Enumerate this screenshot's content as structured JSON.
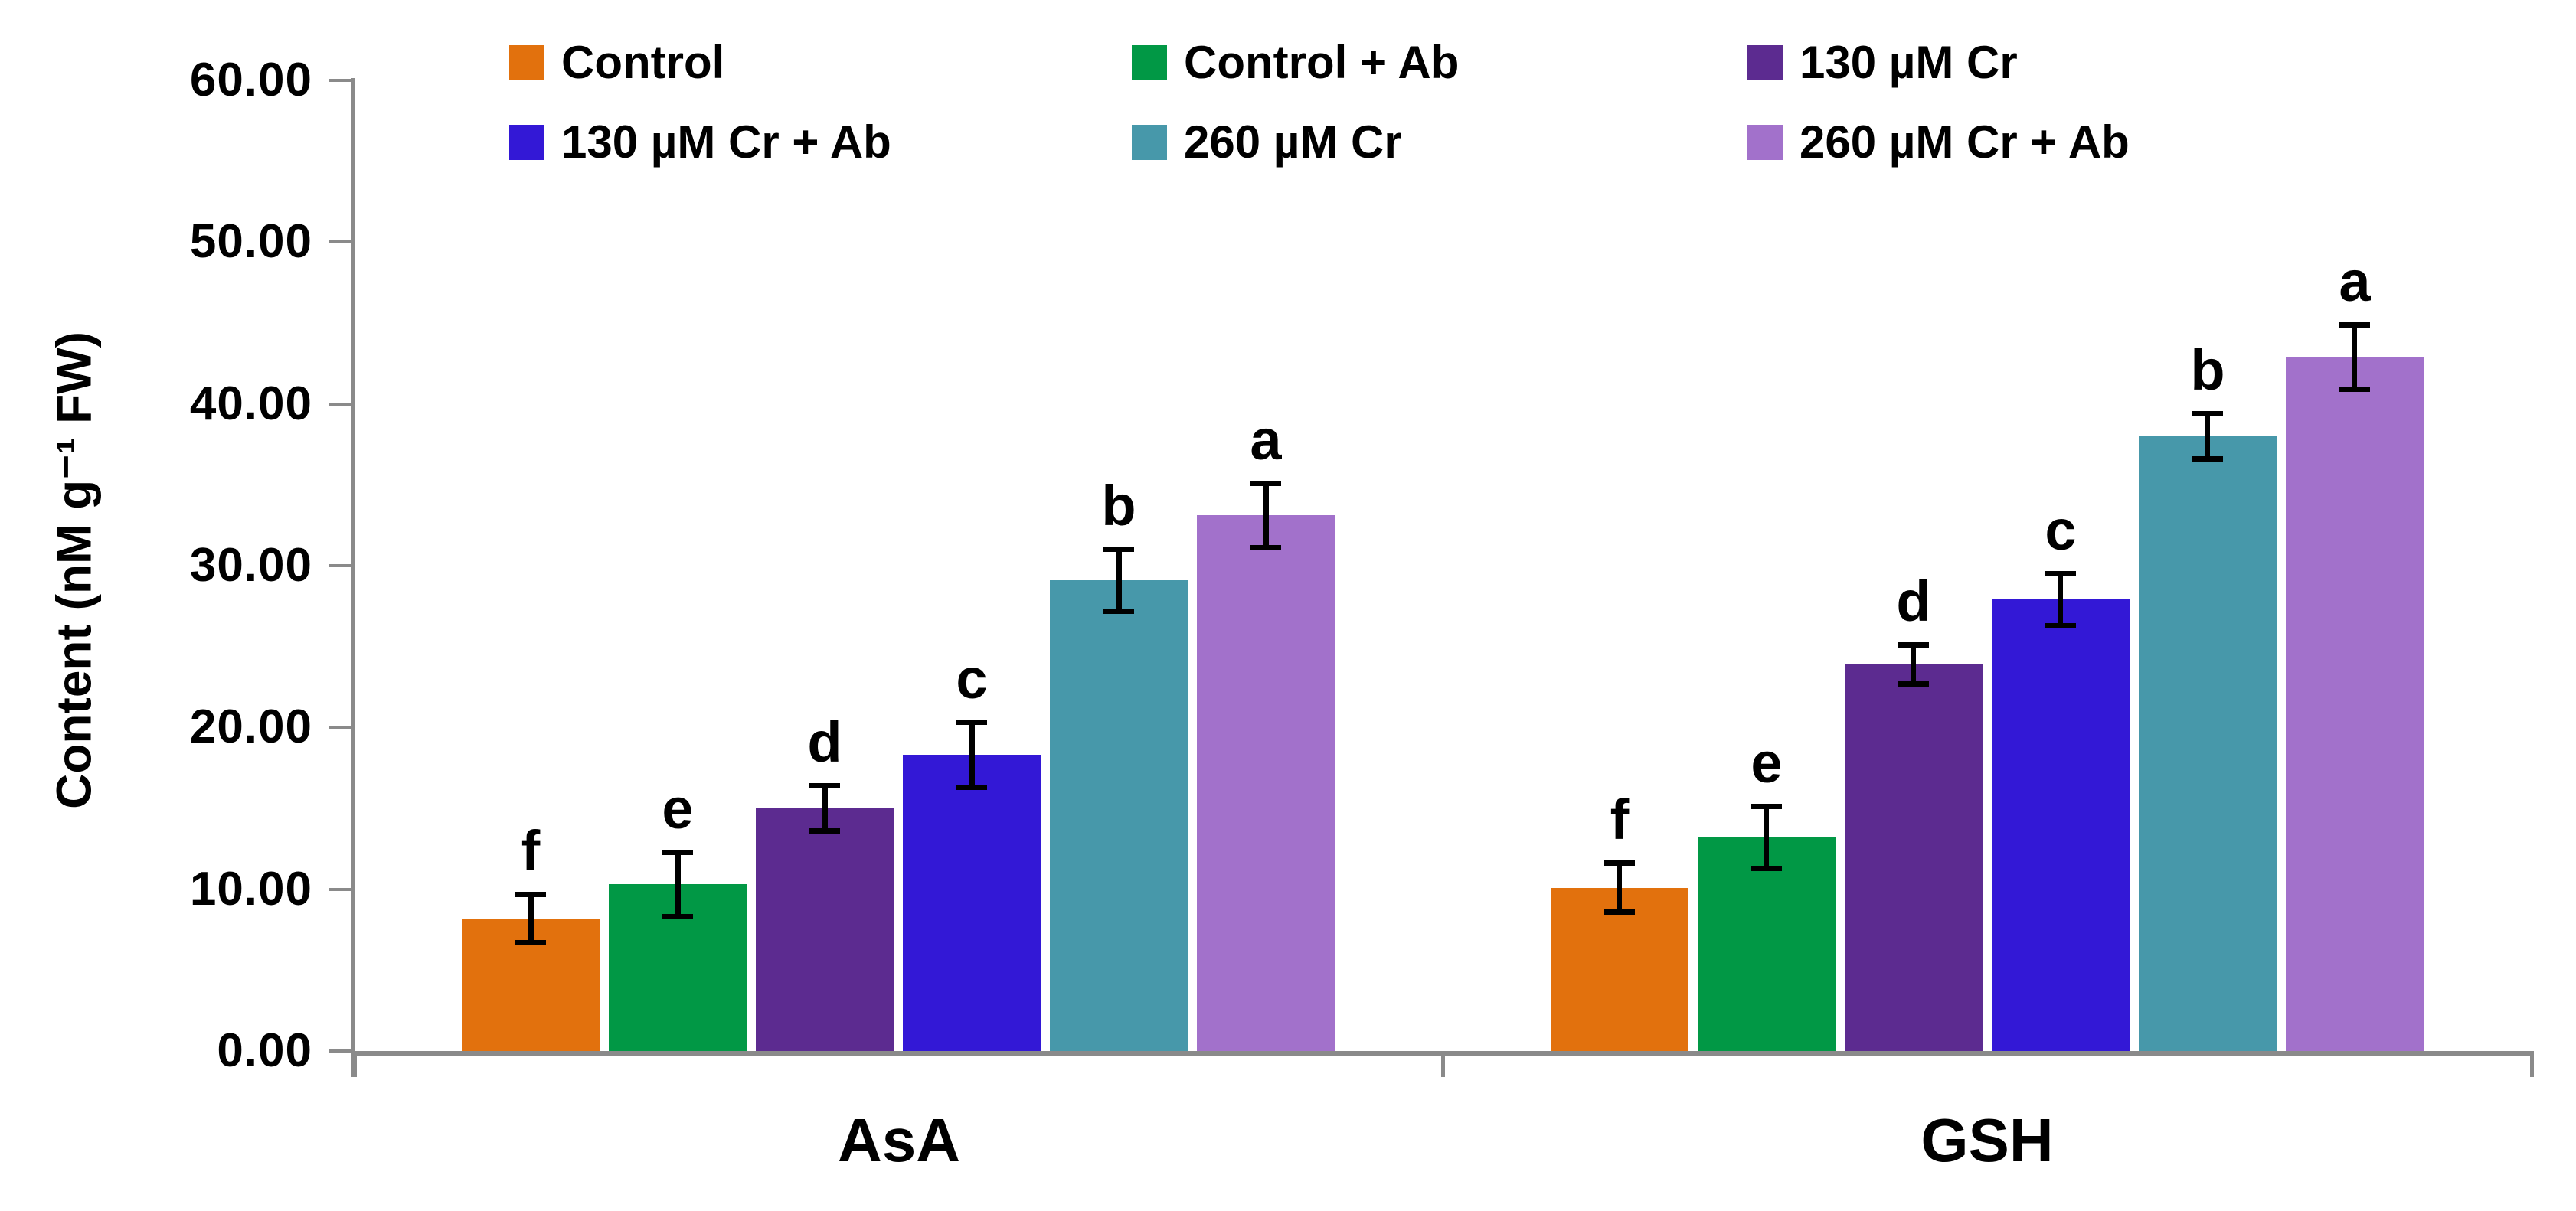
{
  "chart_data": {
    "type": "bar",
    "title": "",
    "xlabel": "",
    "ylabel": "Content (nM g⁻¹ FW)",
    "ylim": [
      0,
      60
    ],
    "ytick_step": 10,
    "ytick_decimals": 2,
    "ytick_labels": [
      "0.00",
      "10.00",
      "20.00",
      "30.00",
      "40.00",
      "50.00",
      "60.00"
    ],
    "grid": false,
    "error_bars": true,
    "legend_position": "top",
    "legend_rows": 2,
    "legend_columns": 3,
    "axis_color": "#8a8a8a",
    "text_color": "#000000",
    "categories": [
      "AsA",
      "GSH"
    ],
    "series": [
      {
        "name": "Control",
        "color": "#e2710d",
        "values": [
          8.2,
          10.1
        ],
        "errors": [
          1.5,
          1.5
        ],
        "letters": [
          "f",
          "f"
        ]
      },
      {
        "name": "Control + Ab",
        "color": "#019845",
        "values": [
          10.3,
          13.2
        ],
        "errors": [
          2.0,
          1.9
        ],
        "letters": [
          "e",
          "e"
        ]
      },
      {
        "name": "130 µM Cr",
        "color": "#5c2b90",
        "values": [
          15.0,
          23.9
        ],
        "errors": [
          1.4,
          1.2
        ],
        "letters": [
          "d",
          "d"
        ]
      },
      {
        "name": "130 µM Cr + Ab",
        "color": "#3318d6",
        "values": [
          18.3,
          27.9
        ],
        "errors": [
          2.0,
          1.6
        ],
        "letters": [
          "c",
          "c"
        ]
      },
      {
        "name": "260 µM Cr",
        "color": "#4798aa",
        "values": [
          29.1,
          38.0
        ],
        "errors": [
          1.9,
          1.4
        ],
        "letters": [
          "b",
          "b"
        ]
      },
      {
        "name": "260 µM Cr + Ab",
        "color": "#a271cb",
        "values": [
          33.1,
          42.9
        ],
        "errors": [
          2.0,
          2.0
        ],
        "letters": [
          "a",
          "a"
        ]
      }
    ]
  }
}
